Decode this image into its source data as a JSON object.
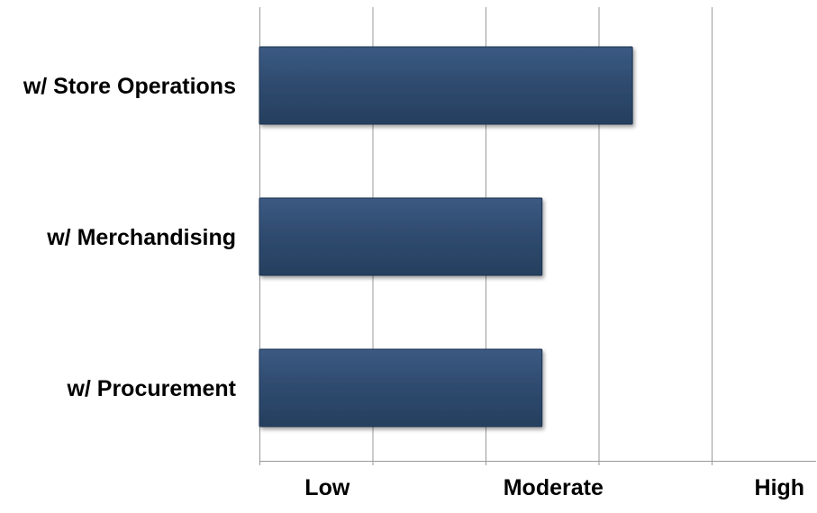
{
  "chart_data": {
    "type": "bar",
    "orientation": "horizontal",
    "categories": [
      "w/ Store Operations",
      "w/ Merchandising",
      "w/ Procurement"
    ],
    "values": [
      3.3,
      2.5,
      2.5
    ],
    "xlim": [
      0,
      4
    ],
    "x_tick_labels": [
      "Low",
      "Moderate",
      "High"
    ],
    "x_tick_label_values": [
      0.6,
      2.6,
      4.6
    ],
    "gridlines": [
      1,
      2,
      3,
      4
    ],
    "grid": true,
    "legend": "none",
    "bar_color": "#2e4a6e",
    "bar_edge_color": "#1c3350",
    "grid_color": "#9a9a9a",
    "label_color": "#000000"
  }
}
